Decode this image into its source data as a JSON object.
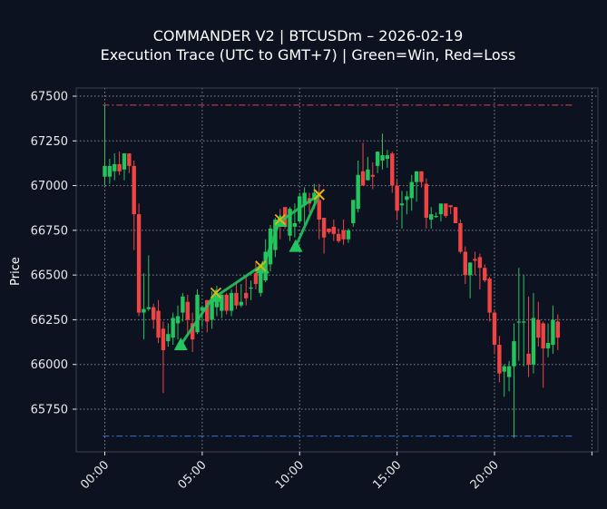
{
  "chart_data": {
    "type": "candlestick",
    "title": "COMMANDER V2 | BTCUSDm – 2026-02-19",
    "subtitle": "Execution Trace (UTC to GMT+7) | Green=Win, Red=Loss",
    "xlabel": "",
    "ylabel": "Price",
    "ylim": [
      65570,
      67540
    ],
    "yticks": [
      65750,
      66000,
      66250,
      66500,
      66750,
      67000,
      67250,
      67500
    ],
    "xticks": [
      {
        "label": "00:00",
        "hour": 0
      },
      {
        "label": "05:00",
        "hour": 5
      },
      {
        "label": "10:00",
        "hour": 10
      },
      {
        "label": "15:00",
        "hour": 15
      },
      {
        "label": "20:00",
        "hour": 20
      }
    ],
    "xlim_hours": [
      -1.5,
      25.3
    ],
    "grid": true,
    "interval_minutes": 15,
    "reference_lines": [
      {
        "name": "day-high",
        "price": 67450,
        "color": "#d84a4a",
        "style": "dashdot"
      },
      {
        "name": "day-low",
        "price": 65600,
        "color": "#3b6fd1",
        "style": "dashdot"
      }
    ],
    "colors": {
      "up": "#22c55e",
      "down": "#ef4444",
      "trade_line": "#22c55e",
      "entry_marker": "#22c55e",
      "exit_marker": "#eab308",
      "background": "#0d1221",
      "grid": "#9aa0aa",
      "frame": "#3a4252"
    },
    "candles": [
      {
        "h": 0.0,
        "o": 67050,
        "h_": 67450,
        "l": 67000,
        "c": 67110
      },
      {
        "h": 0.25,
        "o": 67050,
        "h_": 67150,
        "l": 67010,
        "c": 67110
      },
      {
        "h": 0.5,
        "o": 67080,
        "h_": 67180,
        "l": 67030,
        "c": 67120
      },
      {
        "h": 0.75,
        "o": 67120,
        "h_": 67190,
        "l": 67060,
        "c": 67080
      },
      {
        "h": 1.0,
        "o": 67090,
        "h_": 67170,
        "l": 67030,
        "c": 67180
      },
      {
        "h": 1.25,
        "o": 67180,
        "h_": 67170,
        "l": 67070,
        "c": 67110
      },
      {
        "h": 1.5,
        "o": 67110,
        "h_": 67140,
        "l": 66640,
        "c": 66840
      },
      {
        "h": 1.75,
        "o": 66840,
        "h_": 66900,
        "l": 66270,
        "c": 66290
      },
      {
        "h": 2.0,
        "o": 66290,
        "h_": 66510,
        "l": 66140,
        "c": 66310
      },
      {
        "h": 2.25,
        "o": 66310,
        "h_": 66610,
        "l": 66300,
        "c": 66320
      },
      {
        "h": 2.5,
        "o": 66320,
        "h_": 66340,
        "l": 66200,
        "c": 66250
      },
      {
        "h": 2.75,
        "o": 66300,
        "h_": 66360,
        "l": 66120,
        "c": 66150
      },
      {
        "h": 3.0,
        "o": 66200,
        "h_": 66240,
        "l": 65840,
        "c": 66080
      },
      {
        "h": 3.25,
        "o": 66130,
        "h_": 66230,
        "l": 66100,
        "c": 66170
      },
      {
        "h": 3.5,
        "o": 66150,
        "h_": 66290,
        "l": 66110,
        "c": 66260
      },
      {
        "h": 3.75,
        "o": 66230,
        "h_": 66330,
        "l": 66140,
        "c": 66270
      },
      {
        "h": 4.0,
        "o": 66290,
        "h_": 66400,
        "l": 66240,
        "c": 66380
      },
      {
        "h": 4.25,
        "o": 66350,
        "h_": 66390,
        "l": 66160,
        "c": 66250
      },
      {
        "h": 4.5,
        "o": 66230,
        "h_": 66290,
        "l": 66070,
        "c": 66140
      },
      {
        "h": 4.75,
        "o": 66180,
        "h_": 66420,
        "l": 66170,
        "c": 66390
      },
      {
        "h": 5.0,
        "o": 66300,
        "h_": 66330,
        "l": 66210,
        "c": 66320
      },
      {
        "h": 5.25,
        "o": 66360,
        "h_": 66360,
        "l": 66180,
        "c": 66240
      },
      {
        "h": 5.5,
        "o": 66250,
        "h_": 66410,
        "l": 66200,
        "c": 66360
      },
      {
        "h": 5.75,
        "o": 66320,
        "h_": 66440,
        "l": 66270,
        "c": 66370
      },
      {
        "h": 6.0,
        "o": 66300,
        "h_": 66380,
        "l": 66260,
        "c": 66390
      },
      {
        "h": 6.25,
        "o": 66390,
        "h_": 66400,
        "l": 66280,
        "c": 66300
      },
      {
        "h": 6.5,
        "o": 66300,
        "h_": 66420,
        "l": 66270,
        "c": 66400
      },
      {
        "h": 6.75,
        "o": 66400,
        "h_": 66460,
        "l": 66310,
        "c": 66330
      },
      {
        "h": 7.0,
        "o": 66330,
        "h_": 66450,
        "l": 66320,
        "c": 66350
      },
      {
        "h": 7.25,
        "o": 66400,
        "h_": 66490,
        "l": 66330,
        "c": 66370
      },
      {
        "h": 7.5,
        "o": 66430,
        "h_": 66470,
        "l": 66360,
        "c": 66430
      },
      {
        "h": 7.75,
        "o": 66510,
        "h_": 66570,
        "l": 66420,
        "c": 66450
      },
      {
        "h": 8.0,
        "o": 66400,
        "h_": 66530,
        "l": 66380,
        "c": 66550
      },
      {
        "h": 8.25,
        "o": 66470,
        "h_": 66700,
        "l": 66460,
        "c": 66630
      },
      {
        "h": 8.5,
        "o": 66560,
        "h_": 66780,
        "l": 66520,
        "c": 66760
      },
      {
        "h": 8.75,
        "o": 66640,
        "h_": 66820,
        "l": 66600,
        "c": 66810
      },
      {
        "h": 9.0,
        "o": 66820,
        "h_": 66870,
        "l": 66700,
        "c": 66790
      },
      {
        "h": 9.25,
        "o": 66880,
        "h_": 66880,
        "l": 66760,
        "c": 66770
      },
      {
        "h": 9.5,
        "o": 66720,
        "h_": 66880,
        "l": 66690,
        "c": 66870
      },
      {
        "h": 9.75,
        "o": 66770,
        "h_": 66900,
        "l": 66710,
        "c": 66790
      },
      {
        "h": 10.0,
        "o": 66800,
        "h_": 66960,
        "l": 66790,
        "c": 66940
      },
      {
        "h": 10.25,
        "o": 66890,
        "h_": 66990,
        "l": 66780,
        "c": 66960
      },
      {
        "h": 10.5,
        "o": 66930,
        "h_": 66960,
        "l": 66850,
        "c": 66900
      },
      {
        "h": 10.75,
        "o": 66920,
        "h_": 67010,
        "l": 66870,
        "c": 66960
      },
      {
        "h": 11.0,
        "o": 66920,
        "h_": 67010,
        "l": 66700,
        "c": 66810
      },
      {
        "h": 11.25,
        "o": 66820,
        "h_": 66770,
        "l": 66620,
        "c": 66710
      },
      {
        "h": 11.5,
        "o": 66760,
        "h_": 66740,
        "l": 66730,
        "c": 66740
      },
      {
        "h": 11.75,
        "o": 66770,
        "h_": 66810,
        "l": 66690,
        "c": 66730
      },
      {
        "h": 12.0,
        "o": 66730,
        "h_": 66760,
        "l": 66680,
        "c": 66690
      },
      {
        "h": 12.25,
        "o": 66750,
        "h_": 66810,
        "l": 66670,
        "c": 66700
      },
      {
        "h": 12.5,
        "o": 66700,
        "h_": 66760,
        "l": 66680,
        "c": 66750
      },
      {
        "h": 12.75,
        "o": 66790,
        "h_": 66830,
        "l": 66770,
        "c": 66920
      },
      {
        "h": 13.0,
        "o": 66870,
        "h_": 67140,
        "l": 66850,
        "c": 67060
      },
      {
        "h": 13.25,
        "o": 67080,
        "h_": 67240,
        "l": 67020,
        "c": 67000
      },
      {
        "h": 13.5,
        "o": 67030,
        "h_": 67160,
        "l": 67030,
        "c": 67090
      },
      {
        "h": 13.75,
        "o": 67060,
        "h_": 67130,
        "l": 66980,
        "c": 67050
      },
      {
        "h": 14.0,
        "o": 67110,
        "h_": 67180,
        "l": 67070,
        "c": 67190
      },
      {
        "h": 14.25,
        "o": 67140,
        "h_": 67290,
        "l": 67090,
        "c": 67170
      },
      {
        "h": 14.5,
        "o": 67150,
        "h_": 67200,
        "l": 67100,
        "c": 67170
      },
      {
        "h": 14.75,
        "o": 67180,
        "h_": 67190,
        "l": 66960,
        "c": 67000
      },
      {
        "h": 15.0,
        "o": 67000,
        "h_": 67030,
        "l": 66810,
        "c": 66860
      },
      {
        "h": 15.25,
        "o": 66890,
        "h_": 66970,
        "l": 66760,
        "c": 66900
      },
      {
        "h": 15.5,
        "o": 66920,
        "h_": 66970,
        "l": 66840,
        "c": 66940
      },
      {
        "h": 15.75,
        "o": 66930,
        "h_": 67060,
        "l": 66860,
        "c": 67020
      },
      {
        "h": 16.0,
        "o": 67020,
        "h_": 67080,
        "l": 66910,
        "c": 67080
      },
      {
        "h": 16.25,
        "o": 67080,
        "h_": 67060,
        "l": 66990,
        "c": 67020
      },
      {
        "h": 16.5,
        "o": 67010,
        "h_": 67040,
        "l": 66760,
        "c": 66820
      },
      {
        "h": 16.75,
        "o": 66810,
        "h_": 66880,
        "l": 66760,
        "c": 66840
      },
      {
        "h": 17.0,
        "o": 66830,
        "h_": 66850,
        "l": 66820,
        "c": 66830
      },
      {
        "h": 17.25,
        "o": 66840,
        "h_": 66900,
        "l": 66800,
        "c": 66900
      },
      {
        "h": 17.5,
        "o": 66900,
        "h_": 66860,
        "l": 66820,
        "c": 66830
      },
      {
        "h": 17.75,
        "o": 66890,
        "h_": 66890,
        "l": 66840,
        "c": 66880
      },
      {
        "h": 18.0,
        "o": 66880,
        "h_": 66870,
        "l": 66820,
        "c": 66790
      },
      {
        "h": 18.25,
        "o": 66790,
        "h_": 66810,
        "l": 66620,
        "c": 66630
      },
      {
        "h": 18.5,
        "o": 66630,
        "h_": 66660,
        "l": 66450,
        "c": 66500
      },
      {
        "h": 18.75,
        "o": 66500,
        "h_": 66550,
        "l": 66370,
        "c": 66570
      },
      {
        "h": 19.0,
        "o": 66590,
        "h_": 66630,
        "l": 66500,
        "c": 66580
      },
      {
        "h": 19.25,
        "o": 66600,
        "h_": 66620,
        "l": 66420,
        "c": 66540
      },
      {
        "h": 19.5,
        "o": 66540,
        "h_": 66560,
        "l": 66460,
        "c": 66470
      },
      {
        "h": 19.75,
        "o": 66480,
        "h_": 66490,
        "l": 66240,
        "c": 66290
      },
      {
        "h": 20.0,
        "o": 66290,
        "h_": 66300,
        "l": 66060,
        "c": 66110
      },
      {
        "h": 20.25,
        "o": 66110,
        "h_": 66160,
        "l": 65900,
        "c": 65950
      },
      {
        "h": 20.5,
        "o": 65960,
        "h_": 66000,
        "l": 65820,
        "c": 65990
      },
      {
        "h": 20.75,
        "o": 65930,
        "h_": 66020,
        "l": 65850,
        "c": 65990
      },
      {
        "h": 21.0,
        "o": 65990,
        "h_": 66230,
        "l": 65590,
        "c": 66130
      },
      {
        "h": 21.25,
        "o": 66240,
        "h_": 66540,
        "l": 66020,
        "c": 66240
      },
      {
        "h": 21.5,
        "o": 66240,
        "h_": 66500,
        "l": 65990,
        "c": 66240
      },
      {
        "h": 21.75,
        "o": 66060,
        "h_": 66380,
        "l": 65930,
        "c": 66000
      },
      {
        "h": 22.0,
        "o": 66000,
        "h_": 66400,
        "l": 65950,
        "c": 66260
      },
      {
        "h": 22.25,
        "o": 66250,
        "h_": 66350,
        "l": 66100,
        "c": 66150
      },
      {
        "h": 22.5,
        "o": 66230,
        "h_": 66240,
        "l": 65870,
        "c": 66090
      },
      {
        "h": 22.75,
        "o": 66090,
        "h_": 66230,
        "l": 66040,
        "c": 66120
      },
      {
        "h": 23.0,
        "o": 66110,
        "h_": 66330,
        "l": 66060,
        "c": 66250
      },
      {
        "h": 23.25,
        "o": 66240,
        "h_": 66280,
        "l": 66080,
        "c": 66150
      }
    ],
    "trades": [
      {
        "entry_hour": 3.9,
        "entry_price": 66110,
        "exit_hour": 5.7,
        "exit_price": 66400,
        "result": "win"
      },
      {
        "entry_hour": 5.7,
        "entry_price": 66380,
        "exit_hour": 8.0,
        "exit_price": 66550,
        "result": "win"
      },
      {
        "entry_hour": 8.1,
        "entry_price": 66540,
        "exit_hour": 9.0,
        "exit_price": 66810,
        "result": "win"
      },
      {
        "entry_hour": 9.8,
        "entry_price": 66660,
        "exit_hour": 11.0,
        "exit_price": 66950,
        "result": "win"
      },
      {
        "entry_hour": 9.0,
        "entry_price": 66800,
        "exit_hour": 11.0,
        "exit_price": 66950,
        "result": "win"
      }
    ]
  }
}
